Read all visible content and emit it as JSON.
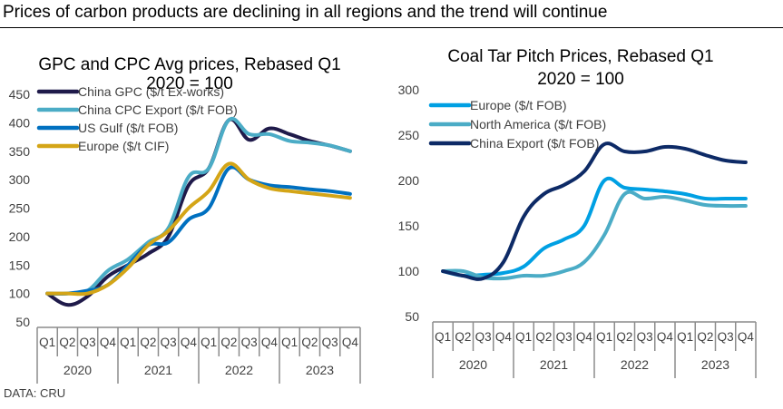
{
  "headline": "Prices of carbon products are declining in all regions and the trend will continue",
  "source": "DATA: CRU",
  "chart_data": [
    {
      "type": "line",
      "title_line1": "GPC and CPC Avg prices, Rebased Q1",
      "title_line2": "2020 = 100",
      "xlabel": "",
      "ylabel": "",
      "ylim": [
        50,
        450
      ],
      "yticks": [
        50,
        100,
        150,
        200,
        250,
        300,
        350,
        400,
        450
      ],
      "grid": false,
      "legend_position": "top-left",
      "categories": [
        "Q1",
        "Q2",
        "Q3",
        "Q4",
        "Q1",
        "Q2",
        "Q3",
        "Q4",
        "Q1",
        "Q2",
        "Q3",
        "Q4",
        "Q1",
        "Q2",
        "Q3",
        "Q4"
      ],
      "years": [
        "2020",
        "2021",
        "2022",
        "2023"
      ],
      "series": [
        {
          "name": "China GPC ($/t Ex-works)",
          "color": "#1f1a4a",
          "values": [
            100,
            80,
            95,
            130,
            150,
            170,
            200,
            290,
            320,
            405,
            370,
            390,
            380,
            368,
            360,
            350
          ]
        },
        {
          "name": "China CPC Export ($/t FOB)",
          "color": "#4bacc6",
          "values": [
            100,
            100,
            105,
            140,
            160,
            190,
            215,
            305,
            320,
            405,
            380,
            380,
            368,
            365,
            360,
            350
          ]
        },
        {
          "name": "US Gulf ($/t FOB)",
          "color": "#0070c0",
          "values": [
            100,
            100,
            105,
            115,
            150,
            185,
            190,
            230,
            250,
            320,
            300,
            290,
            287,
            283,
            280,
            275
          ]
        },
        {
          "name": "Europe ($/t CIF)",
          "color": "#d4a517",
          "values": [
            100,
            100,
            100,
            115,
            145,
            185,
            210,
            250,
            280,
            328,
            300,
            285,
            280,
            276,
            272,
            268
          ]
        }
      ]
    },
    {
      "type": "line",
      "title_line1": "Coal Tar Pitch Prices, Rebased Q1",
      "title_line2": "2020 = 100",
      "xlabel": "",
      "ylabel": "",
      "ylim": [
        50,
        300
      ],
      "yticks": [
        50,
        100,
        150,
        200,
        250,
        300
      ],
      "grid": false,
      "legend_position": "top-left",
      "categories": [
        "Q1",
        "Q2",
        "Q3",
        "Q4",
        "Q1",
        "Q2",
        "Q3",
        "Q4",
        "Q1",
        "Q2",
        "Q3",
        "Q4",
        "Q1",
        "Q2",
        "Q3",
        "Q4"
      ],
      "years": [
        "2020",
        "2021",
        "2022",
        "2023"
      ],
      "series": [
        {
          "name": "Europe ($/t FOB)",
          "color": "#00a0e3",
          "values": [
            100,
            95,
            96,
            98,
            105,
            125,
            135,
            150,
            200,
            192,
            190,
            188,
            185,
            180,
            180,
            180
          ]
        },
        {
          "name": "North America ($/t FOB)",
          "color": "#4bacc6",
          "values": [
            100,
            100,
            93,
            92,
            95,
            95,
            100,
            110,
            140,
            185,
            180,
            182,
            178,
            173,
            172,
            172
          ]
        },
        {
          "name": "China Export ($/t FOB)",
          "color": "#0d2a66",
          "values": [
            100,
            95,
            92,
            110,
            160,
            185,
            195,
            210,
            240,
            232,
            232,
            237,
            235,
            228,
            222,
            220
          ]
        }
      ]
    }
  ]
}
